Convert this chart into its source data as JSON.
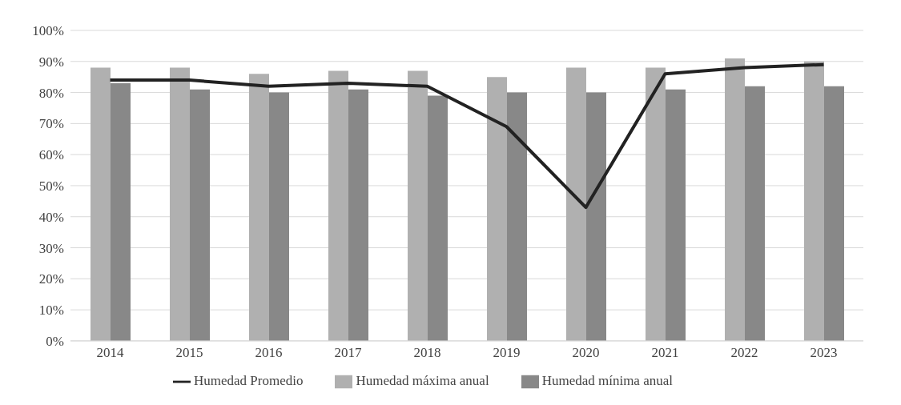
{
  "chart_data": {
    "type": "bar",
    "categories": [
      "2014",
      "2015",
      "2016",
      "2017",
      "2018",
      "2019",
      "2020",
      "2021",
      "2022",
      "2023"
    ],
    "series": [
      {
        "name": "Humedad máxima anual",
        "color": "#b0b0b0",
        "values": [
          88,
          88,
          86,
          87,
          87,
          85,
          88,
          88,
          91,
          90
        ]
      },
      {
        "name": "Humedad mínima anual",
        "color": "#888888",
        "values": [
          83,
          81,
          80,
          81,
          79,
          80,
          80,
          81,
          82,
          82
        ]
      },
      {
        "name": "Humedad Promedio",
        "type": "line",
        "color": "#222222",
        "values": [
          84,
          84,
          82,
          83,
          82,
          69,
          43,
          86,
          88,
          89
        ]
      }
    ],
    "ylim": [
      0,
      100
    ],
    "yticks": [
      {
        "value": 0,
        "label": "0%"
      },
      {
        "value": 10,
        "label": "10%"
      },
      {
        "value": 20,
        "label": "20%"
      },
      {
        "value": 30,
        "label": "30%"
      },
      {
        "value": 40,
        "label": "40%"
      },
      {
        "value": 50,
        "label": "50%"
      },
      {
        "value": 60,
        "label": "60%"
      },
      {
        "value": 70,
        "label": "70%"
      },
      {
        "value": 80,
        "label": "80%"
      },
      {
        "value": 90,
        "label": "90%"
      },
      {
        "value": 100,
        "label": "100%"
      }
    ],
    "grid": "y",
    "legend": "bottom",
    "marker": "none",
    "line_style": "solid"
  }
}
